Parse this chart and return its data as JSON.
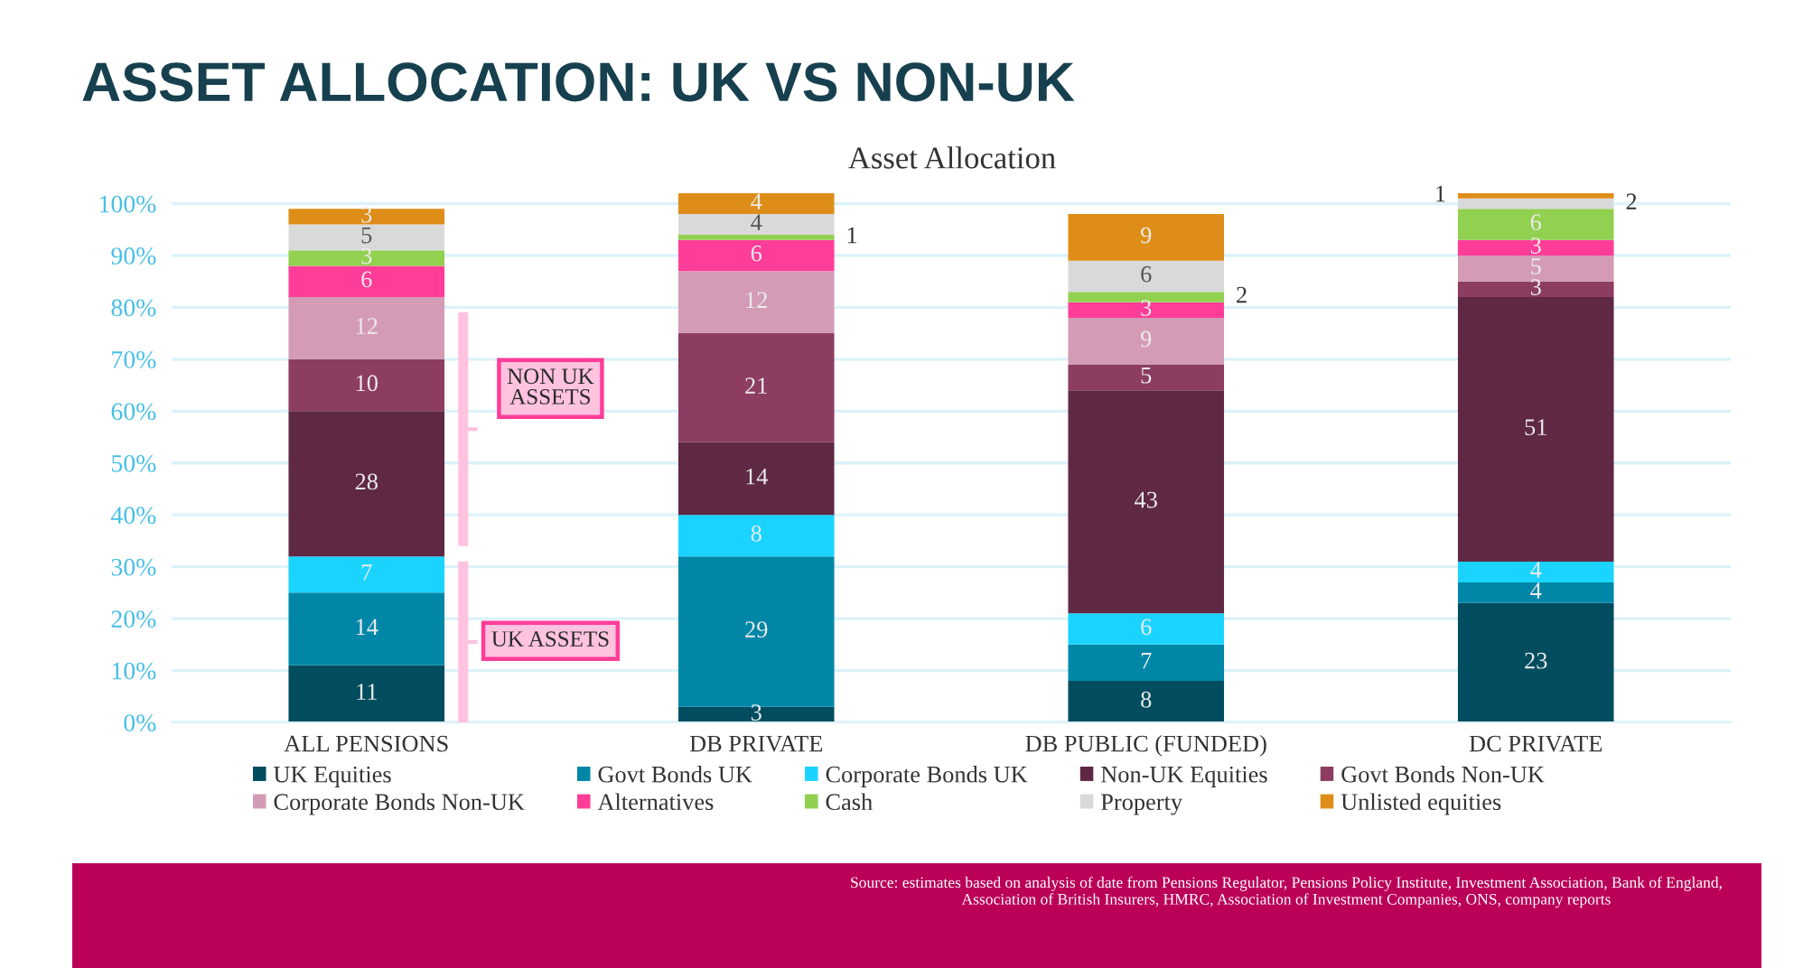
{
  "chart_data": {
    "type": "bar",
    "stacked": true,
    "title": "ASSET ALLOCATION: UK VS NON-UK",
    "subtitle": "Asset Allocation",
    "categories": [
      "ALL PENSIONS",
      "DB PRIVATE",
      "DB PUBLIC (FUNDED)",
      "DC PRIVATE"
    ],
    "series": [
      {
        "name": "UK Equities",
        "color": "#014d5f",
        "values": [
          11,
          3,
          8,
          23
        ]
      },
      {
        "name": "Govt Bonds UK",
        "color": "#0087a8",
        "values": [
          14,
          29,
          7,
          4
        ]
      },
      {
        "name": "Corporate Bonds UK",
        "color": "#1ad4ff",
        "values": [
          7,
          8,
          6,
          4
        ]
      },
      {
        "name": "Non-UK Equities",
        "color": "#5f2844",
        "values": [
          28,
          14,
          43,
          51
        ]
      },
      {
        "name": "Govt Bonds Non-UK",
        "color": "#8c3d61",
        "values": [
          10,
          21,
          5,
          3
        ]
      },
      {
        "name": "Corporate Bonds Non-UK",
        "color": "#d49bb6",
        "values": [
          12,
          12,
          9,
          5
        ]
      },
      {
        "name": "Alternatives",
        "color": "#ff3d98",
        "values": [
          6,
          6,
          3,
          3
        ]
      },
      {
        "name": "Cash",
        "color": "#92d050",
        "values": [
          3,
          1,
          2,
          6
        ]
      },
      {
        "name": "Property",
        "color": "#d9d9d9",
        "values": [
          5,
          4,
          6,
          2
        ]
      },
      {
        "name": "Unlisted equities",
        "color": "#de8e18",
        "values": [
          3,
          4,
          9,
          1
        ]
      }
    ],
    "ylim": [
      0,
      102
    ],
    "yticks": [
      {
        "value": 0,
        "label": "0%"
      },
      {
        "value": 10,
        "label": "10%"
      },
      {
        "value": 20,
        "label": "20%"
      },
      {
        "value": 30,
        "label": "30%"
      },
      {
        "value": 40,
        "label": "40%"
      },
      {
        "value": 50,
        "label": "50%"
      },
      {
        "value": 60,
        "label": "60%"
      },
      {
        "value": 70,
        "label": "70%"
      },
      {
        "value": 80,
        "label": "80%"
      },
      {
        "value": 90,
        "label": "90%"
      },
      {
        "value": 100,
        "label": "100%"
      }
    ],
    "grid": "y",
    "legend": "bottom",
    "data_labels": true,
    "annotations": [
      "UK ASSETS",
      "NON UK\nASSETS",
      "Source: estimates based on analysis of date from Pensions Regulator, Pensions Policy Institute, Investment Association, Bank of England,\nAssociation of British Insurers, HMRC, Association of Investment Companies, ONS, company reports"
    ]
  }
}
